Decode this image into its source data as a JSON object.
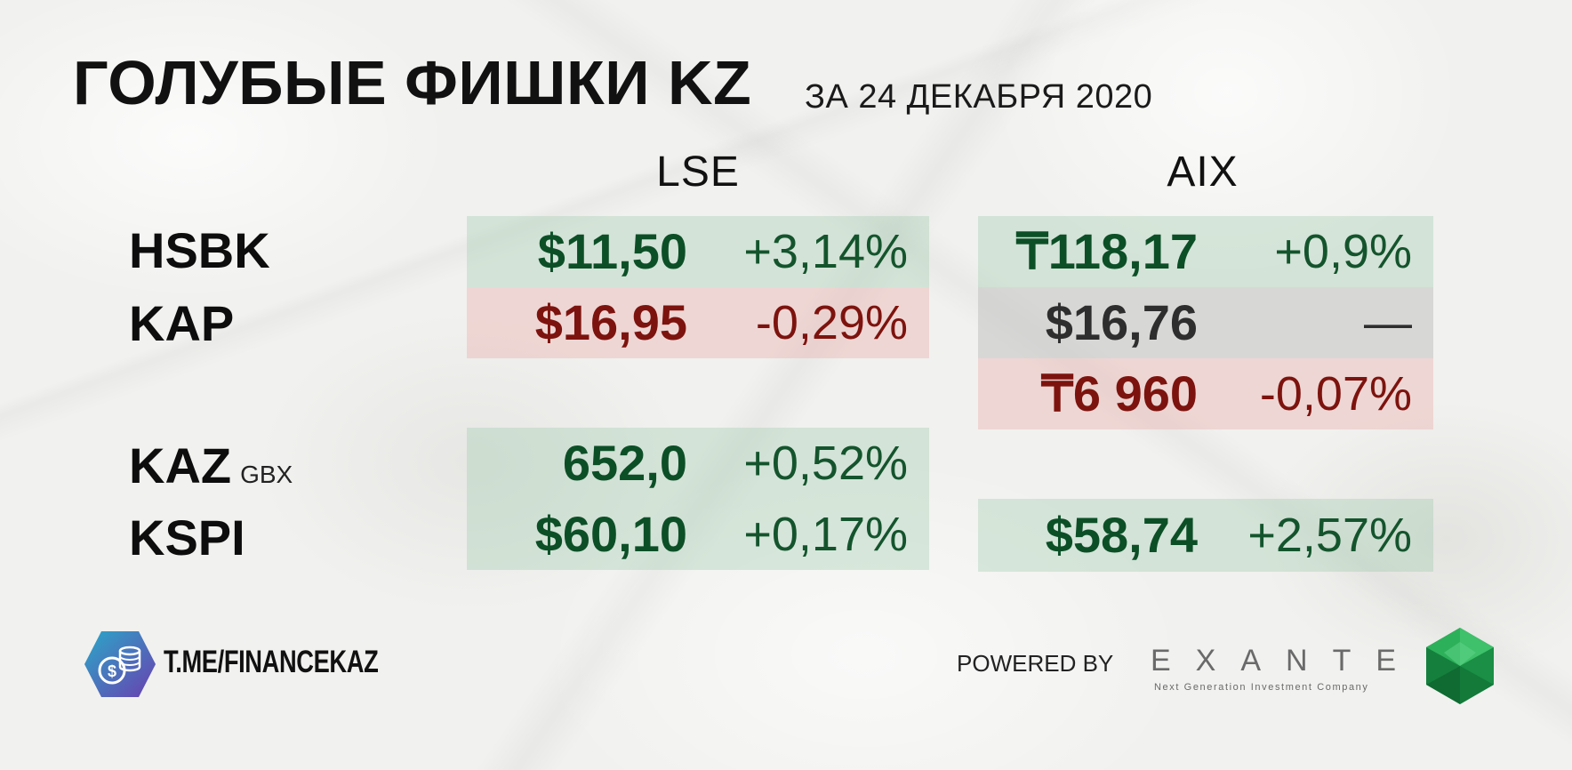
{
  "header": {
    "title": "ГОЛУБЫЕ ФИШКИ KZ",
    "subtitle": "ЗА 24 ДЕКАБРЯ 2020"
  },
  "exchanges": [
    "LSE",
    "AIX"
  ],
  "rows": [
    {
      "ticker": "HSBK",
      "lse": {
        "price": "$11,50",
        "change": "+3,14%",
        "status": "up"
      },
      "aix": {
        "price": "₸118,17",
        "change": "+0,9%",
        "status": "up"
      }
    },
    {
      "ticker": "KAP",
      "lse": {
        "price": "$16,95",
        "change": "-0,29%",
        "status": "down"
      },
      "aix": {
        "price": "$16,76",
        "change": "—",
        "status": "flat"
      }
    },
    {
      "ticker": "",
      "aix": {
        "price": "₸6 960",
        "change": "-0,07%",
        "status": "down"
      }
    },
    {
      "ticker": "KAZ",
      "ticker_suffix": "GBX",
      "lse": {
        "price": "652,0",
        "change": "+0,52%",
        "status": "up"
      }
    },
    {
      "ticker": "KSPI",
      "lse": {
        "price": "$60,10",
        "change": "+0,17%",
        "status": "up"
      },
      "aix": {
        "price": "$58,74",
        "change": "+2,57%",
        "status": "up"
      }
    }
  ],
  "footer": {
    "channel_link": "T.ME/FINANCEKAZ",
    "powered_by": "POWERED BY",
    "brand_name": "EXANTE",
    "brand_tagline": "Next Generation Investment Company"
  },
  "colors": {
    "up_text": "#0c4f27",
    "down_text": "#7d130e",
    "flat_text": "#2e2e2e",
    "logo_teal": "#2aa8c8",
    "logo_purple": "#6a3fb0",
    "gem_green": "#1f9a4a"
  },
  "icons": {
    "channel_logo": "coins-dollar-icon",
    "brand_mark": "green-gem-icon"
  }
}
